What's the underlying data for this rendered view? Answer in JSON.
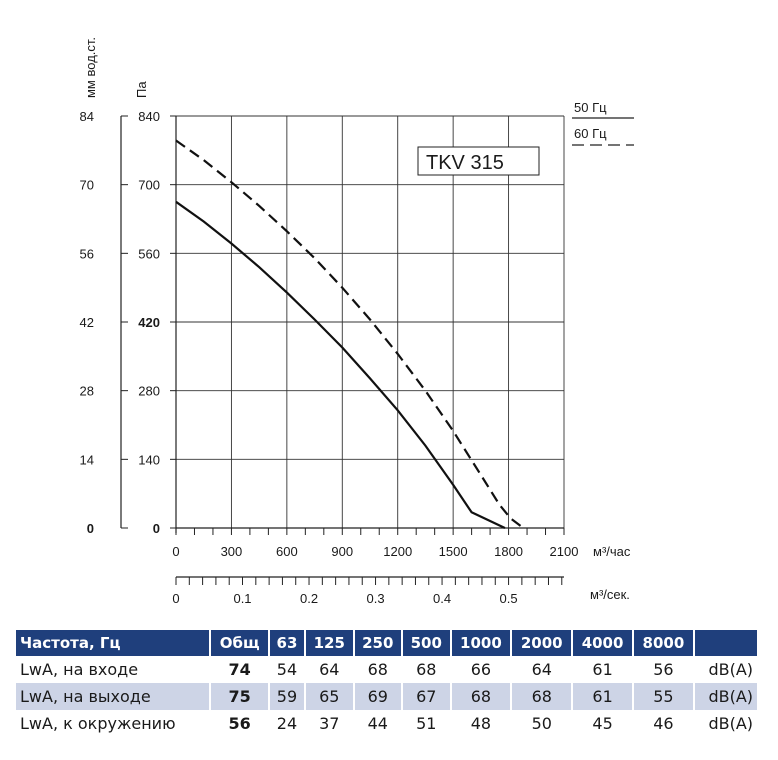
{
  "chart_data": {
    "type": "line",
    "title": "TKV 315",
    "y_left_outer_unit": "мм вод.ст.",
    "y_left_inner_unit": "Па",
    "y_outer_ticks": [
      "84",
      "70",
      "56",
      "42",
      "28",
      "14",
      "0"
    ],
    "y_inner_ticks": [
      "840",
      "700",
      "560",
      "420",
      "280",
      "140",
      "0"
    ],
    "x_top_unit": "м³/час",
    "x_top_ticks": [
      "0",
      "300",
      "600",
      "900",
      "1200",
      "1500",
      "1800",
      "2100"
    ],
    "x_bottom_unit": "м³/сек.",
    "x_bottom_ticks": [
      "0",
      "0.1",
      "0.2",
      "0.3",
      "0.4",
      "0.5"
    ],
    "xlim": [
      0,
      2100
    ],
    "ylim": [
      0,
      840
    ],
    "grid": true,
    "legend": {
      "position": "top-right",
      "entries": [
        {
          "label": "50 Гц",
          "style": "solid"
        },
        {
          "label": "60 Гц",
          "style": "dashed"
        }
      ]
    },
    "series": [
      {
        "name": "50 Гц",
        "style": "solid",
        "x": [
          0,
          300,
          600,
          900,
          1200,
          1500,
          1650,
          1750,
          1780
        ],
        "y": [
          665,
          580,
          480,
          370,
          240,
          90,
          0,
          -1,
          -1
        ]
      },
      {
        "name": "60 Гц",
        "style": "dashed",
        "x": [
          0,
          300,
          600,
          900,
          1200,
          1500,
          1700,
          1810,
          1880
        ],
        "y": [
          790,
          705,
          605,
          490,
          355,
          195,
          80,
          30,
          0
        ]
      }
    ]
  },
  "table": {
    "headers": [
      "Частота, Гц",
      "Общ",
      "63",
      "125",
      "250",
      "500",
      "1000",
      "2000",
      "4000",
      "8000",
      ""
    ],
    "rows": [
      {
        "label": "LwA, на входе",
        "total": "74",
        "values": [
          "54",
          "64",
          "68",
          "68",
          "66",
          "64",
          "61",
          "56"
        ],
        "unit": "dB(A)"
      },
      {
        "label": "LwA, на выходе",
        "total": "75",
        "values": [
          "59",
          "65",
          "69",
          "67",
          "68",
          "68",
          "61",
          "55"
        ],
        "unit": "dB(A)"
      },
      {
        "label": "LwA, к окружению",
        "total": "56",
        "values": [
          "24",
          "37",
          "44",
          "51",
          "48",
          "50",
          "45",
          "46"
        ],
        "unit": "dB(A)"
      }
    ]
  }
}
